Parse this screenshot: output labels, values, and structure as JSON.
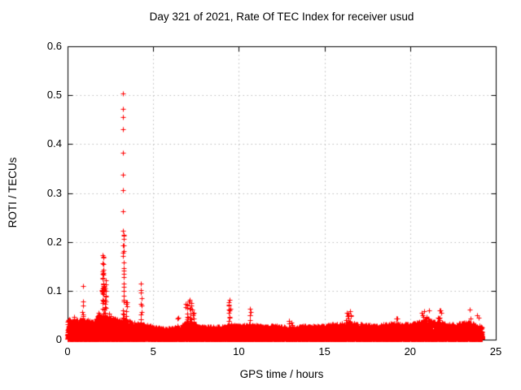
{
  "title": "Day 321 of 2021, Rate Of TEC Index for receiver usud",
  "x_axis": {
    "label": "GPS time / hours",
    "ticks": [
      0,
      5,
      10,
      15,
      20,
      25
    ]
  },
  "y_axis": {
    "label": "ROTI / TECUs",
    "ticks": [
      0,
      0.1,
      0.2,
      0.3,
      0.4,
      0.5,
      0.6
    ]
  },
  "chart_data": {
    "type": "scatter",
    "title": "Day 321 of 2021, Rate Of TEC Index for receiver usud",
    "xlabel": "GPS time / hours",
    "ylabel": "ROTI / TECUs",
    "xlim": [
      0,
      25
    ],
    "ylim": [
      0,
      0.6
    ],
    "xticks": [
      0,
      5,
      10,
      15,
      20,
      25
    ],
    "yticks": [
      0,
      0.1,
      0.2,
      0.3,
      0.4,
      0.5,
      0.6
    ],
    "grid": true,
    "legend": "none",
    "marker": {
      "shape": "plus",
      "color": "#ff0000",
      "size": 7
    },
    "grid_color": "#bdbdbd",
    "frame_color": "#000000",
    "background": "#ffffff",
    "data_extent_hours": [
      0,
      24.2
    ],
    "baseline_band": {
      "description": "dense band of ROTI values hugging 0-0.03 TECU across all 24h",
      "step_hours": 0.006,
      "points_per_epoch": 3,
      "min_value": 0.0015,
      "envelope": [
        [
          0,
          0.04
        ],
        [
          0.5,
          0.038
        ],
        [
          1,
          0.04
        ],
        [
          1.5,
          0.035
        ],
        [
          2,
          0.05
        ],
        [
          2.4,
          0.045
        ],
        [
          3,
          0.04
        ],
        [
          3.5,
          0.04
        ],
        [
          4,
          0.032
        ],
        [
          4.5,
          0.03
        ],
        [
          5,
          0.025
        ],
        [
          5.5,
          0.022
        ],
        [
          6,
          0.022
        ],
        [
          6.5,
          0.025
        ],
        [
          7,
          0.035
        ],
        [
          7.5,
          0.03
        ],
        [
          8,
          0.025
        ],
        [
          8.5,
          0.025
        ],
        [
          9,
          0.025
        ],
        [
          9.5,
          0.03
        ],
        [
          10,
          0.028
        ],
        [
          10.5,
          0.03
        ],
        [
          11,
          0.028
        ],
        [
          11.5,
          0.025
        ],
        [
          12,
          0.028
        ],
        [
          12.5,
          0.025
        ],
        [
          13,
          0.024
        ],
        [
          13.5,
          0.025
        ],
        [
          14,
          0.028
        ],
        [
          14.5,
          0.026
        ],
        [
          15,
          0.028
        ],
        [
          15.5,
          0.03
        ],
        [
          16,
          0.032
        ],
        [
          16.5,
          0.035
        ],
        [
          17,
          0.03
        ],
        [
          17.5,
          0.028
        ],
        [
          18,
          0.028
        ],
        [
          18.5,
          0.03
        ],
        [
          19,
          0.032
        ],
        [
          19.5,
          0.03
        ],
        [
          20,
          0.03
        ],
        [
          20.5,
          0.035
        ],
        [
          21,
          0.038
        ],
        [
          21.5,
          0.035
        ],
        [
          22,
          0.032
        ],
        [
          22.5,
          0.03
        ],
        [
          23,
          0.032
        ],
        [
          23.5,
          0.035
        ],
        [
          24,
          0.028
        ],
        [
          24.2,
          0.025
        ]
      ]
    },
    "spike_clusters": [
      [
        0.1,
        0.08,
        8,
        0.02,
        0.048
      ],
      [
        0.35,
        0.15,
        10,
        0.02,
        0.05
      ],
      [
        0.9,
        0.06,
        5,
        0.03,
        0.055
      ],
      [
        1.8,
        0.15,
        12,
        0.02,
        0.06
      ],
      [
        2.07,
        0.07,
        45,
        0.03,
        0.175
      ],
      [
        2.2,
        0.08,
        30,
        0.03,
        0.13
      ],
      [
        2.5,
        0.1,
        10,
        0.02,
        0.055
      ],
      [
        3.27,
        0.03,
        25,
        0.03,
        0.22
      ],
      [
        3.45,
        0.08,
        12,
        0.02,
        0.08
      ],
      [
        4.28,
        0.05,
        10,
        0.03,
        0.112
      ],
      [
        6.4,
        0.1,
        6,
        0.02,
        0.045
      ],
      [
        7.1,
        0.2,
        40,
        0.02,
        0.08
      ],
      [
        7.35,
        0.1,
        15,
        0.02,
        0.06
      ],
      [
        9.45,
        0.06,
        10,
        0.02,
        0.08
      ],
      [
        10.65,
        0.06,
        8,
        0.02,
        0.062
      ],
      [
        13.0,
        0.3,
        8,
        0.015,
        0.04
      ],
      [
        16.4,
        0.25,
        20,
        0.02,
        0.058
      ],
      [
        19.2,
        0.1,
        6,
        0.02,
        0.05
      ],
      [
        20.9,
        0.3,
        25,
        0.02,
        0.058
      ],
      [
        21.7,
        0.15,
        12,
        0.02,
        0.06
      ],
      [
        23.5,
        0.05,
        6,
        0.02,
        0.06
      ]
    ],
    "outlier_points": [
      [
        3.24,
        0.503
      ],
      [
        3.24,
        0.472
      ],
      [
        3.24,
        0.455
      ],
      [
        3.24,
        0.43
      ],
      [
        3.24,
        0.383
      ],
      [
        3.24,
        0.338
      ],
      [
        3.24,
        0.305
      ],
      [
        3.24,
        0.262
      ],
      [
        3.24,
        0.222
      ],
      [
        3.25,
        0.178
      ],
      [
        3.26,
        0.158
      ],
      [
        3.27,
        0.142
      ],
      [
        3.27,
        0.128
      ],
      [
        3.28,
        0.115
      ],
      [
        3.28,
        0.1
      ],
      [
        3.29,
        0.09
      ],
      [
        0.89,
        0.109
      ],
      [
        0.9,
        0.078
      ],
      [
        0.9,
        0.07
      ],
      [
        0.85,
        0.056
      ],
      [
        4.28,
        0.115
      ],
      [
        4.3,
        0.096
      ],
      [
        7.15,
        0.082
      ],
      [
        9.45,
        0.082
      ],
      [
        9.4,
        0.07
      ],
      [
        10.65,
        0.063
      ],
      [
        16.5,
        0.058
      ],
      [
        21.1,
        0.06
      ],
      [
        21.7,
        0.06
      ],
      [
        23.5,
        0.062
      ],
      [
        23.9,
        0.05
      ],
      [
        24.0,
        0.045
      ]
    ]
  }
}
